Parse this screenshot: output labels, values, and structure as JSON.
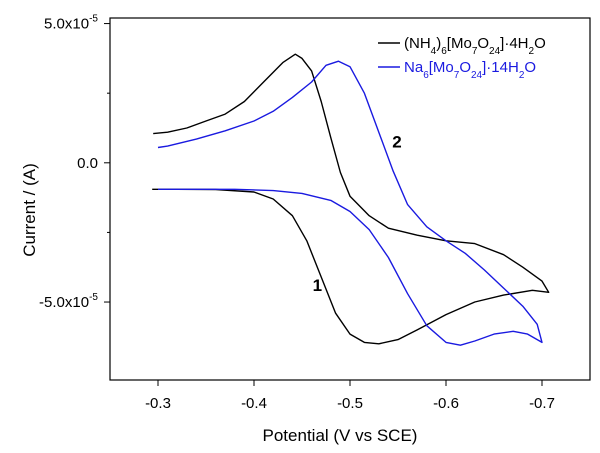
{
  "chart_data": {
    "type": "line",
    "xlabel": "Potential  (V vs SCE)",
    "ylabel": "Current / (A)",
    "xlim": [
      -0.25,
      -0.75
    ],
    "ylim": [
      -7.8e-05,
      5.2e-05
    ],
    "x_reversed": true,
    "grid": false,
    "legend_position": "top-right",
    "x_ticks": [
      -0.3,
      -0.4,
      -0.5,
      -0.6,
      -0.7
    ],
    "x_tick_labels": [
      "-0.3",
      "-0.4",
      "-0.5",
      "-0.6",
      "-0.7"
    ],
    "y_ticks": [
      5e-05,
      0.0,
      -5e-05
    ],
    "y_tick_labels": [
      "5.0x10",
      "0.0",
      "-5.0x10"
    ],
    "y_tick_exponents": [
      "-5",
      "",
      "-5"
    ],
    "series": [
      {
        "name": "(NH4)6[Mo7O24]·4H2O",
        "name_parts": [
          [
            "(NH",
            ""
          ],
          [
            "4",
            "sub"
          ],
          [
            ")",
            ""
          ],
          [
            "6",
            "sub"
          ],
          [
            "[Mo",
            ""
          ],
          [
            "7",
            "sub"
          ],
          [
            "O",
            ""
          ],
          [
            "24",
            "sub"
          ],
          [
            "]·4H",
            ""
          ],
          [
            "2",
            "sub"
          ],
          [
            "O",
            ""
          ]
        ],
        "color": "#000000",
        "points": [
          [
            -0.294,
            -9.5e-06
          ],
          [
            -0.32,
            -9.5e-06
          ],
          [
            -0.36,
            -9.6e-06
          ],
          [
            -0.4,
            -1.05e-05
          ],
          [
            -0.42,
            -1.3e-05
          ],
          [
            -0.44,
            -1.9e-05
          ],
          [
            -0.455,
            -2.8e-05
          ],
          [
            -0.47,
            -4.1e-05
          ],
          [
            -0.485,
            -5.4e-05
          ],
          [
            -0.5,
            -6.15e-05
          ],
          [
            -0.515,
            -6.45e-05
          ],
          [
            -0.53,
            -6.5e-05
          ],
          [
            -0.55,
            -6.35e-05
          ],
          [
            -0.57,
            -6e-05
          ],
          [
            -0.6,
            -5.45e-05
          ],
          [
            -0.63,
            -5e-05
          ],
          [
            -0.66,
            -4.75e-05
          ],
          [
            -0.69,
            -4.58e-05
          ],
          [
            -0.707,
            -4.65e-05
          ],
          [
            -0.7,
            -4.25e-05
          ],
          [
            -0.68,
            -3.75e-05
          ],
          [
            -0.66,
            -3.3e-05
          ],
          [
            -0.63,
            -2.9e-05
          ],
          [
            -0.6,
            -2.8e-05
          ],
          [
            -0.57,
            -2.6e-05
          ],
          [
            -0.54,
            -2.35e-05
          ],
          [
            -0.52,
            -1.9e-05
          ],
          [
            -0.5,
            -1.2e-05
          ],
          [
            -0.49,
            -3.5e-06
          ],
          [
            -0.48,
            9e-06
          ],
          [
            -0.47,
            2.2e-05
          ],
          [
            -0.46,
            3.3e-05
          ],
          [
            -0.45,
            3.75e-05
          ],
          [
            -0.443,
            3.9e-05
          ],
          [
            -0.43,
            3.6e-05
          ],
          [
            -0.41,
            2.9e-05
          ],
          [
            -0.39,
            2.2e-05
          ],
          [
            -0.37,
            1.75e-05
          ],
          [
            -0.35,
            1.5e-05
          ],
          [
            -0.33,
            1.25e-05
          ],
          [
            -0.31,
            1.1e-05
          ],
          [
            -0.295,
            1.05e-05
          ]
        ]
      },
      {
        "name": "Na6[Mo7O24]·14H2O",
        "name_parts": [
          [
            "Na",
            ""
          ],
          [
            "6",
            "sub"
          ],
          [
            "[Mo",
            ""
          ],
          [
            "7",
            "sub"
          ],
          [
            "O",
            ""
          ],
          [
            "24",
            "sub"
          ],
          [
            "]·14H",
            ""
          ],
          [
            "2",
            "sub"
          ],
          [
            "O",
            ""
          ]
        ],
        "color": "#1a1ae0",
        "points": [
          [
            -0.3,
            -9.5e-06
          ],
          [
            -0.34,
            -9.5e-06
          ],
          [
            -0.38,
            -9.5e-06
          ],
          [
            -0.42,
            -1e-05
          ],
          [
            -0.45,
            -1.1e-05
          ],
          [
            -0.48,
            -1.35e-05
          ],
          [
            -0.5,
            -1.75e-05
          ],
          [
            -0.52,
            -2.4e-05
          ],
          [
            -0.54,
            -3.4e-05
          ],
          [
            -0.56,
            -4.7e-05
          ],
          [
            -0.58,
            -5.85e-05
          ],
          [
            -0.6,
            -6.45e-05
          ],
          [
            -0.615,
            -6.55e-05
          ],
          [
            -0.63,
            -6.4e-05
          ],
          [
            -0.65,
            -6.15e-05
          ],
          [
            -0.67,
            -6.05e-05
          ],
          [
            -0.685,
            -6.15e-05
          ],
          [
            -0.7,
            -6.45e-05
          ],
          [
            -0.695,
            -5.8e-05
          ],
          [
            -0.68,
            -5.15e-05
          ],
          [
            -0.66,
            -4.5e-05
          ],
          [
            -0.64,
            -3.85e-05
          ],
          [
            -0.62,
            -3.25e-05
          ],
          [
            -0.6,
            -2.8e-05
          ],
          [
            -0.58,
            -2.3e-05
          ],
          [
            -0.56,
            -1.5e-05
          ],
          [
            -0.545,
            -3e-06
          ],
          [
            -0.53,
            1.1e-05
          ],
          [
            -0.515,
            2.5e-05
          ],
          [
            -0.5,
            3.45e-05
          ],
          [
            -0.488,
            3.65e-05
          ],
          [
            -0.475,
            3.5e-05
          ],
          [
            -0.46,
            2.9e-05
          ],
          [
            -0.44,
            2.35e-05
          ],
          [
            -0.42,
            1.85e-05
          ],
          [
            -0.4,
            1.5e-05
          ],
          [
            -0.37,
            1.15e-05
          ],
          [
            -0.34,
            8.5e-06
          ],
          [
            -0.31,
            6e-06
          ],
          [
            -0.3,
            5.5e-06
          ]
        ]
      }
    ],
    "annotations": [
      {
        "text": "1",
        "x": -0.466,
        "y": -4.6e-05
      },
      {
        "text": "2",
        "x": -0.549,
        "y": 5.5e-06
      }
    ]
  }
}
